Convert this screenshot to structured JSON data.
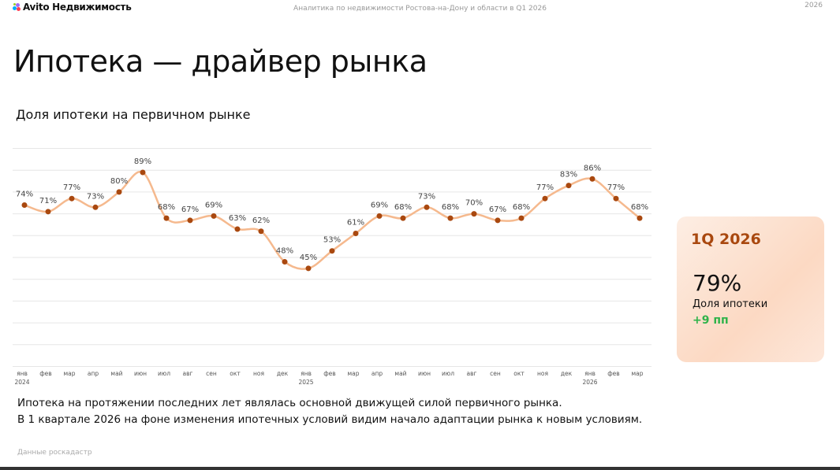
{
  "header": {
    "logo": "Avito Недвижимость",
    "center": "Аналитика по недвижимости Ростова-на-Дону и области в Q1 2026",
    "year": "2026"
  },
  "title": "Ипотека — драйвер рынка",
  "subtitle": "Доля ипотеки на первичном рынке",
  "description": [
    "Ипотека на протяжении последних лет являлась основной движущей силой первичного рынка.",
    "В 1 квартале 2026 на фоне изменения ипотечных условий видим начало адаптации рынка к новым условиям."
  ],
  "source": "Данные роскадастр",
  "card": {
    "period": "1Q 2026",
    "value": "79%",
    "label": "Доля ипотеки",
    "delta": "+9 пп"
  },
  "colors": {
    "line": "#f5b98e",
    "point": "#a9480f",
    "accent": "#a9480f",
    "positive": "#2fb34a",
    "grid": "#e6e6e6"
  },
  "chart_data": {
    "type": "line",
    "categories": [
      "янв",
      "фев",
      "мар",
      "апр",
      "май",
      "июн",
      "июл",
      "авг",
      "сен",
      "окт",
      "ноя",
      "дек",
      "янв",
      "фев",
      "мар",
      "апр",
      "май",
      "июн",
      "июл",
      "авг",
      "сен",
      "окт",
      "ноя",
      "дек",
      "янв",
      "фев",
      "мар"
    ],
    "year_labels": {
      "0": "2024",
      "12": "2025",
      "24": "2026"
    },
    "values": [
      74,
      71,
      77,
      73,
      80,
      89,
      68,
      67,
      69,
      63,
      62,
      48,
      45,
      53,
      61,
      69,
      68,
      73,
      68,
      70,
      67,
      68,
      77,
      83,
      86,
      77,
      68
    ],
    "value_suffix": "%",
    "ylim": [
      0,
      100
    ],
    "grid": true,
    "legend": "none"
  }
}
